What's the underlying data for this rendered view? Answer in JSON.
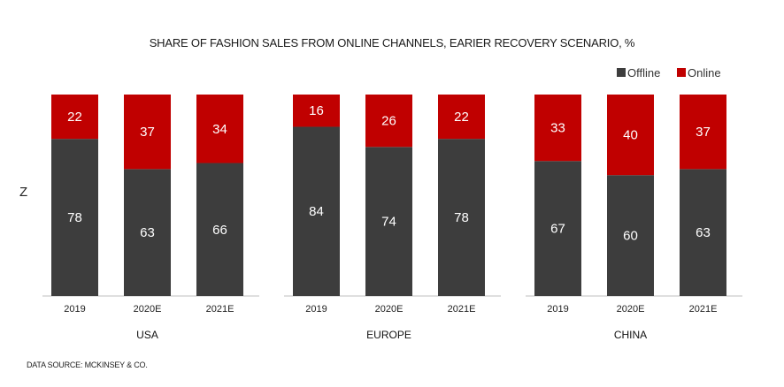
{
  "chart_data": {
    "type": "bar",
    "stacked": true,
    "title": "SHARE OF FASHION SALES FROM ONLINE CHANNELS, EARIER RECOVERY SCENARIO, %",
    "side_label": "Z",
    "source": "DATA SOURCE: MCKINSEY & CO.",
    "legend": {
      "placement": "top-right",
      "items": [
        {
          "name": "Offline",
          "color": "#3d3d3d"
        },
        {
          "name": "Online",
          "color": "#c00000"
        }
      ]
    },
    "ylim": [
      0,
      100
    ],
    "grid": false,
    "groups": [
      {
        "name": "USA",
        "categories": [
          "2019",
          "2020E",
          "2021E"
        ],
        "series": [
          {
            "name": "Offline",
            "values": [
              78,
              63,
              66
            ]
          },
          {
            "name": "Online",
            "values": [
              22,
              37,
              34
            ]
          }
        ]
      },
      {
        "name": "EUROPE",
        "categories": [
          "2019",
          "2020E",
          "2021E"
        ],
        "series": [
          {
            "name": "Offline",
            "values": [
              84,
              74,
              78
            ]
          },
          {
            "name": "Online",
            "values": [
              16,
              26,
              22
            ]
          }
        ]
      },
      {
        "name": "CHINA",
        "categories": [
          "2019",
          "2020E",
          "2021E"
        ],
        "series": [
          {
            "name": "Offline",
            "values": [
              67,
              60,
              63
            ]
          },
          {
            "name": "Online",
            "values": [
              33,
              40,
              37
            ]
          }
        ]
      }
    ]
  }
}
